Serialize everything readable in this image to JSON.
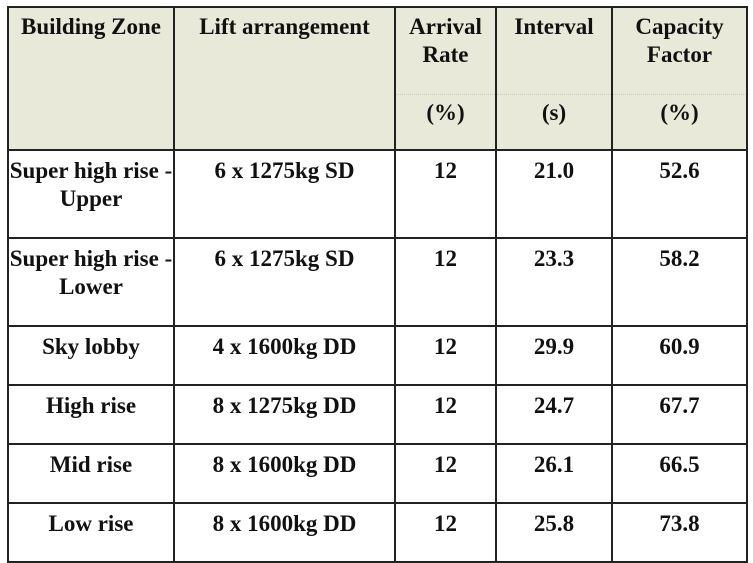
{
  "table": {
    "headers": [
      {
        "title": "Building Zone",
        "unit": ""
      },
      {
        "title": "Lift arrangement",
        "unit": ""
      },
      {
        "title": "Arrival Rate",
        "unit": "(%)"
      },
      {
        "title": "Interval",
        "unit": "(s)"
      },
      {
        "title": "Capacity Factor",
        "unit": "(%)"
      }
    ],
    "rows": [
      {
        "zone": "Super high rise - Upper",
        "lift": "6 x 1275kg SD",
        "arrival": "12",
        "interval": "21.0",
        "capacity": "52.6"
      },
      {
        "zone": "Super high rise - Lower",
        "lift": "6 x 1275kg SD",
        "arrival": "12",
        "interval": "23.3",
        "capacity": "58.2"
      },
      {
        "zone": "Sky lobby",
        "lift": "4 x 1600kg DD",
        "arrival": "12",
        "interval": "29.9",
        "capacity": "60.9"
      },
      {
        "zone": "High rise",
        "lift": "8 x 1275kg DD",
        "arrival": "12",
        "interval": "24.7",
        "capacity": "67.7"
      },
      {
        "zone": "Mid rise",
        "lift": "8 x 1600kg DD",
        "arrival": "12",
        "interval": "26.1",
        "capacity": "66.5"
      },
      {
        "zone": "Low rise",
        "lift": "8 x 1600kg DD",
        "arrival": "12",
        "interval": "25.8",
        "capacity": "73.8"
      }
    ]
  },
  "colors": {
    "header_background": "#e8e9d8",
    "border": "#222222"
  }
}
